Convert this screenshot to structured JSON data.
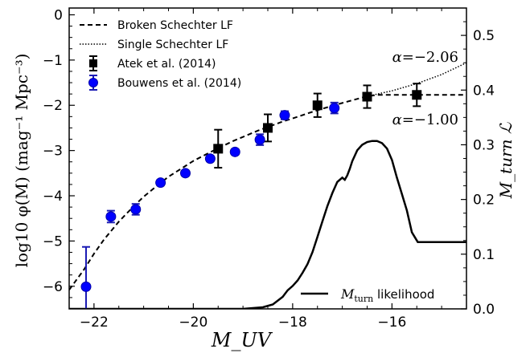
{
  "chart_data": {
    "type": "line",
    "xlabel": "M_UV",
    "ylabel_left": "log10 φ(M)  (mag⁻¹ Mpc⁻³)",
    "ylabel_right": "M_turn ℒ",
    "xlim": [
      -22.5,
      -14.5
    ],
    "ylim_left": [
      -6.5,
      0.15
    ],
    "ylim_right": [
      0.0,
      0.55
    ],
    "x_ticks": [
      {
        "value": -22,
        "label": "−22"
      },
      {
        "value": -20,
        "label": "−20"
      },
      {
        "value": -18,
        "label": "−18"
      },
      {
        "value": -16,
        "label": "−16"
      }
    ],
    "y_left_ticks": [
      {
        "value": 0,
        "label": "0"
      },
      {
        "value": -1,
        "label": "−1"
      },
      {
        "value": -2,
        "label": "−2"
      },
      {
        "value": -3,
        "label": "−3"
      },
      {
        "value": -4,
        "label": "−4"
      },
      {
        "value": -5,
        "label": "−5"
      },
      {
        "value": -6,
        "label": "−6"
      }
    ],
    "y_right_ticks": [
      {
        "value": 0.0,
        "label": "0.0"
      },
      {
        "value": 0.1,
        "label": "0.1"
      },
      {
        "value": 0.2,
        "label": "0.2"
      },
      {
        "value": 0.3,
        "label": "0.3"
      },
      {
        "value": 0.4,
        "label": "0.4"
      },
      {
        "value": 0.5,
        "label": "0.5"
      }
    ],
    "legend": {
      "placement": "upper-left",
      "entries": [
        "Broken Schechter LF",
        "Single Schechter LF",
        "Atek et al. (2014)",
        "Bouwens et al. (2014)"
      ]
    },
    "legend2": {
      "placement": "lower-right",
      "label_math": "M",
      "label_sub": "turn",
      "label_text": " likelihood"
    },
    "annotations": [
      {
        "prefix": "α=",
        "value": "−2.06"
      },
      {
        "prefix": "α=",
        "value": "−1.00"
      }
    ],
    "series": [
      {
        "name": "Broken Schechter LF",
        "style": "dashed",
        "axis": "left",
        "x": [
          -22.5,
          -22.2,
          -22.0,
          -21.8,
          -21.5,
          -21.2,
          -21.0,
          -20.7,
          -20.5,
          -20.2,
          -20.0,
          -19.7,
          -19.5,
          -19.2,
          -19.0,
          -18.7,
          -18.5,
          -18.2,
          -18.0,
          -17.7,
          -17.5,
          -17.2,
          -17.0,
          -16.7,
          -16.5,
          -16.3,
          -16.0,
          -15.5,
          -15.0,
          -14.5
        ],
        "y": [
          -6.08,
          -5.63,
          -5.28,
          -4.97,
          -4.57,
          -4.23,
          -4.02,
          -3.75,
          -3.58,
          -3.37,
          -3.23,
          -3.06,
          -2.95,
          -2.79,
          -2.7,
          -2.56,
          -2.48,
          -2.36,
          -2.29,
          -2.18,
          -2.11,
          -2.01,
          -1.95,
          -1.86,
          -1.8,
          -1.77,
          -1.77,
          -1.77,
          -1.77,
          -1.77
        ]
      },
      {
        "name": "Single Schechter LF",
        "style": "dotted",
        "axis": "left",
        "x": [
          -16.5,
          -16.0,
          -15.5,
          -15.0,
          -14.5
        ],
        "y": [
          -1.8,
          -1.68,
          -1.52,
          -1.32,
          -1.06
        ]
      },
      {
        "name": "Atek et al. (2014)",
        "style": "square-markers",
        "axis": "left",
        "x": [
          -19.5,
          -18.5,
          -17.5,
          -16.5,
          -15.5
        ],
        "y": [
          -2.96,
          -2.5,
          -2.0,
          -1.81,
          -1.77
        ],
        "yerr": [
          0.42,
          0.3,
          0.26,
          0.25,
          0.25
        ]
      },
      {
        "name": "Bouwens et al. (2014)",
        "style": "circle-markers",
        "axis": "left",
        "x": [
          -22.16,
          -21.66,
          -21.16,
          -20.66,
          -20.16,
          -19.66,
          -19.16,
          -18.66,
          -18.16,
          -17.16
        ],
        "y": [
          -6.01,
          -4.46,
          -4.3,
          -3.71,
          -3.5,
          -3.18,
          -3.03,
          -2.76,
          -2.22,
          -2.06
        ],
        "yerr": [
          0.88,
          0.13,
          0.12,
          0.06,
          0.06,
          0.06,
          0.06,
          0.12,
          0.09,
          0.12
        ]
      },
      {
        "name": "M_turn likelihood",
        "style": "solid",
        "axis": "right",
        "x": [
          -22.5,
          -19.0,
          -18.6,
          -18.4,
          -18.2,
          -18.1,
          -18.0,
          -17.9,
          -17.8,
          -17.7,
          -17.6,
          -17.5,
          -17.4,
          -17.3,
          -17.2,
          -17.1,
          -17.0,
          -16.95,
          -16.9,
          -16.85,
          -16.8,
          -16.7,
          -16.6,
          -16.5,
          -16.4,
          -16.3,
          -16.2,
          -16.1,
          -16.0,
          -15.9,
          -15.8,
          -15.7,
          -15.6,
          -15.5,
          -15.48,
          -15.0,
          -14.5
        ],
        "y": [
          0.0,
          0.0,
          0.003,
          0.008,
          0.022,
          0.034,
          0.042,
          0.052,
          0.066,
          0.082,
          0.104,
          0.132,
          0.16,
          0.188,
          0.212,
          0.232,
          0.24,
          0.236,
          0.244,
          0.256,
          0.27,
          0.29,
          0.3,
          0.305,
          0.307,
          0.307,
          0.303,
          0.293,
          0.272,
          0.24,
          0.21,
          0.18,
          0.14,
          0.125,
          0.122,
          0.122,
          0.122
        ]
      }
    ]
  }
}
